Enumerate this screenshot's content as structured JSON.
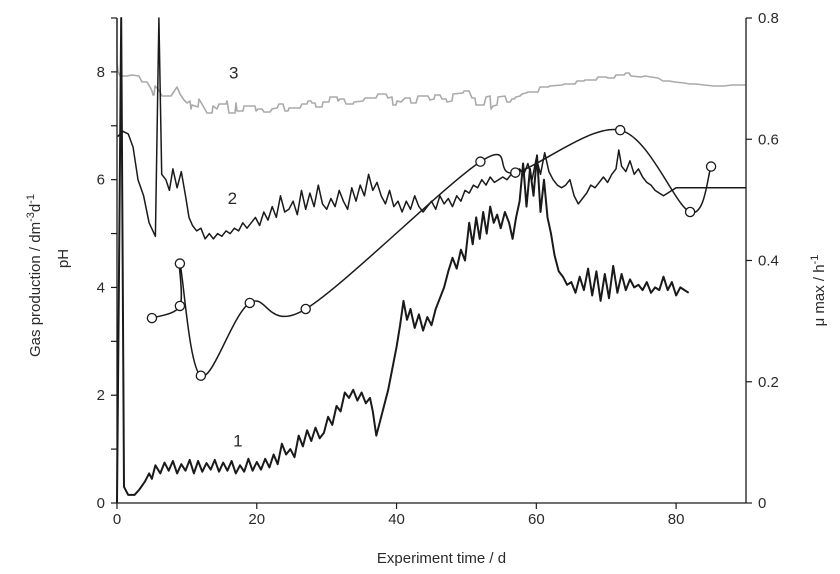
{
  "chart_data": {
    "type": "line",
    "title": "",
    "xlabel": "Experiment time / d",
    "ylabel_left": [
      "Gas production / dm",
      "-3",
      "d",
      "-1"
    ],
    "ylabel_left_second": "pH",
    "ylabel_right": [
      "μ max / h",
      "-1"
    ],
    "xlim": [
      0,
      90
    ],
    "ylim_left": [
      0,
      9
    ],
    "ylim_right": [
      0,
      0.8
    ],
    "x_ticks": [
      0,
      20,
      40,
      60,
      80
    ],
    "y_left_ticks": [
      0,
      2,
      4,
      6,
      8
    ],
    "y_right_ticks": [
      0,
      0.2,
      0.4,
      0.6,
      0.8
    ],
    "x_tick_labels": [
      "0",
      "20",
      "40",
      "60",
      "80"
    ],
    "y_left_tick_labels": [
      "0",
      "2",
      "4",
      "6",
      "8"
    ],
    "y_right_tick_labels": [
      "0",
      "0.2",
      "0.4",
      "0.6",
      "0.8"
    ],
    "grid": false,
    "legend": "none",
    "series": [
      {
        "label": "1",
        "axis": "left",
        "color": "#1a1a1a",
        "marker": "none",
        "label_pos": [
          17.3,
          1.05
        ],
        "points": [
          [
            0,
            0
          ],
          [
            0.6,
            9
          ],
          [
            1.0,
            0.3
          ],
          [
            1.6,
            0.15
          ],
          [
            2.5,
            0.15
          ],
          [
            3.2,
            0.25
          ],
          [
            4.0,
            0.4
          ],
          [
            4.6,
            0.55
          ],
          [
            5.0,
            0.45
          ],
          [
            5.5,
            0.7
          ],
          [
            6.2,
            0.55
          ],
          [
            6.8,
            0.75
          ],
          [
            7.4,
            0.6
          ],
          [
            8.0,
            0.78
          ],
          [
            8.6,
            0.55
          ],
          [
            9.2,
            0.72
          ],
          [
            9.8,
            0.6
          ],
          [
            10.4,
            0.8
          ],
          [
            11.0,
            0.55
          ],
          [
            11.6,
            0.78
          ],
          [
            12.2,
            0.58
          ],
          [
            12.8,
            0.74
          ],
          [
            13.4,
            0.62
          ],
          [
            14.0,
            0.8
          ],
          [
            14.6,
            0.58
          ],
          [
            15.2,
            0.75
          ],
          [
            15.8,
            0.6
          ],
          [
            16.4,
            0.78
          ],
          [
            17.0,
            0.55
          ],
          [
            17.6,
            0.7
          ],
          [
            18.2,
            0.58
          ],
          [
            18.8,
            0.82
          ],
          [
            19.4,
            0.6
          ],
          [
            20.0,
            0.76
          ],
          [
            20.6,
            0.62
          ],
          [
            21.2,
            0.82
          ],
          [
            21.8,
            0.66
          ],
          [
            22.4,
            0.9
          ],
          [
            23.0,
            0.72
          ],
          [
            23.6,
            1.1
          ],
          [
            24.2,
            0.9
          ],
          [
            24.8,
            1.0
          ],
          [
            25.4,
            0.85
          ],
          [
            26.0,
            1.25
          ],
          [
            26.6,
            1.05
          ],
          [
            27.2,
            1.35
          ],
          [
            27.8,
            1.15
          ],
          [
            28.4,
            1.4
          ],
          [
            29.0,
            1.2
          ],
          [
            29.6,
            1.3
          ],
          [
            30.2,
            1.6
          ],
          [
            30.8,
            1.45
          ],
          [
            31.4,
            1.8
          ],
          [
            32.0,
            1.7
          ],
          [
            32.6,
            2.05
          ],
          [
            33.2,
            1.95
          ],
          [
            33.8,
            2.1
          ],
          [
            34.4,
            1.9
          ],
          [
            35.0,
            2.05
          ],
          [
            35.6,
            1.85
          ],
          [
            36.2,
            1.95
          ],
          [
            36.6,
            1.7
          ],
          [
            37.1,
            1.25
          ],
          [
            37.6,
            1.5
          ],
          [
            38.2,
            1.8
          ],
          [
            38.8,
            2.1
          ],
          [
            39.4,
            2.5
          ],
          [
            40.0,
            2.9
          ],
          [
            40.5,
            3.3
          ],
          [
            41.0,
            3.75
          ],
          [
            41.5,
            3.4
          ],
          [
            42.0,
            3.6
          ],
          [
            42.6,
            3.25
          ],
          [
            43.2,
            3.5
          ],
          [
            43.8,
            3.2
          ],
          [
            44.4,
            3.45
          ],
          [
            45.0,
            3.3
          ],
          [
            45.6,
            3.6
          ],
          [
            46.2,
            3.8
          ],
          [
            46.8,
            4.0
          ],
          [
            47.4,
            4.3
          ],
          [
            48.0,
            4.55
          ],
          [
            48.6,
            4.35
          ],
          [
            49.2,
            4.7
          ],
          [
            49.8,
            4.5
          ],
          [
            50.4,
            5.2
          ],
          [
            50.9,
            4.8
          ],
          [
            51.4,
            5.3
          ],
          [
            51.9,
            4.9
          ],
          [
            52.4,
            5.4
          ],
          [
            52.9,
            5.0
          ],
          [
            53.4,
            5.5
          ],
          [
            53.9,
            5.2
          ],
          [
            54.4,
            5.35
          ],
          [
            54.9,
            5.1
          ],
          [
            55.5,
            5.4
          ],
          [
            56.1,
            5.2
          ],
          [
            56.6,
            4.9
          ],
          [
            57.1,
            5.3
          ],
          [
            57.6,
            5.6
          ],
          [
            58.1,
            6.3
          ],
          [
            58.6,
            5.5
          ],
          [
            59.1,
            6.2
          ],
          [
            59.6,
            5.7
          ],
          [
            60.1,
            6.45
          ],
          [
            60.6,
            5.4
          ],
          [
            61.1,
            6.0
          ],
          [
            61.6,
            5.3
          ],
          [
            62.1,
            5.0
          ],
          [
            62.6,
            4.6
          ],
          [
            63.2,
            4.3
          ],
          [
            63.8,
            4.2
          ],
          [
            64.4,
            4.05
          ],
          [
            65.0,
            4.1
          ],
          [
            65.6,
            3.9
          ],
          [
            66.2,
            4.2
          ],
          [
            66.8,
            3.95
          ],
          [
            67.4,
            4.35
          ],
          [
            68.0,
            3.85
          ],
          [
            68.6,
            4.3
          ],
          [
            69.2,
            3.75
          ],
          [
            69.8,
            4.25
          ],
          [
            70.4,
            3.8
          ],
          [
            71.0,
            4.4
          ],
          [
            71.6,
            3.9
          ],
          [
            72.2,
            4.25
          ],
          [
            72.8,
            3.95
          ],
          [
            73.4,
            4.15
          ],
          [
            74.0,
            4.0
          ],
          [
            74.6,
            4.05
          ],
          [
            75.2,
            3.95
          ],
          [
            75.8,
            4.1
          ],
          [
            76.4,
            3.9
          ],
          [
            77.0,
            4.0
          ],
          [
            77.6,
            3.95
          ],
          [
            78.2,
            4.2
          ],
          [
            78.8,
            3.95
          ],
          [
            79.4,
            4.1
          ],
          [
            80.0,
            3.85
          ],
          [
            80.6,
            4.0
          ],
          [
            81.2,
            3.95
          ],
          [
            81.8,
            3.9
          ]
        ]
      },
      {
        "label": "2",
        "axis": "left",
        "color": "#1a1a1a",
        "marker": "none",
        "label_pos": [
          16.5,
          5.55
        ],
        "points": [
          [
            0.1,
            6.8
          ],
          [
            0.8,
            6.9
          ],
          [
            1.6,
            6.85
          ],
          [
            2.3,
            6.6
          ],
          [
            3.0,
            6.0
          ],
          [
            3.8,
            5.7
          ],
          [
            4.6,
            5.2
          ],
          [
            5.5,
            4.95
          ],
          [
            6.0,
            9.0
          ],
          [
            6.4,
            6.1
          ],
          [
            7.0,
            6.0
          ],
          [
            7.5,
            5.8
          ],
          [
            8.0,
            6.2
          ],
          [
            8.6,
            5.85
          ],
          [
            9.2,
            6.15
          ],
          [
            9.8,
            5.7
          ],
          [
            10.3,
            5.3
          ],
          [
            10.8,
            5.15
          ],
          [
            11.4,
            5.05
          ],
          [
            12.0,
            5.1
          ],
          [
            12.6,
            4.9
          ],
          [
            13.2,
            5.0
          ],
          [
            13.8,
            4.9
          ],
          [
            14.4,
            5.0
          ],
          [
            15.0,
            4.95
          ],
          [
            15.6,
            5.05
          ],
          [
            16.2,
            5.0
          ],
          [
            16.8,
            5.1
          ],
          [
            17.4,
            5.05
          ],
          [
            18.0,
            5.2
          ],
          [
            18.6,
            5.1
          ],
          [
            19.2,
            5.2
          ],
          [
            19.8,
            5.3
          ],
          [
            20.4,
            5.15
          ],
          [
            21.0,
            5.4
          ],
          [
            21.6,
            5.25
          ],
          [
            22.2,
            5.5
          ],
          [
            22.8,
            5.3
          ],
          [
            23.4,
            5.7
          ],
          [
            24.0,
            5.4
          ],
          [
            24.6,
            5.45
          ],
          [
            25.2,
            5.6
          ],
          [
            25.8,
            5.35
          ],
          [
            26.4,
            5.8
          ],
          [
            27.0,
            5.45
          ],
          [
            27.6,
            5.75
          ],
          [
            28.2,
            5.5
          ],
          [
            28.8,
            5.9
          ],
          [
            29.4,
            5.55
          ],
          [
            30.0,
            5.45
          ],
          [
            30.6,
            5.65
          ],
          [
            31.2,
            5.5
          ],
          [
            31.8,
            5.8
          ],
          [
            32.4,
            5.6
          ],
          [
            33.0,
            5.45
          ],
          [
            33.6,
            5.85
          ],
          [
            34.2,
            5.6
          ],
          [
            34.8,
            5.9
          ],
          [
            35.4,
            5.7
          ],
          [
            36.0,
            6.1
          ],
          [
            36.6,
            5.8
          ],
          [
            37.2,
            5.95
          ],
          [
            37.8,
            5.7
          ],
          [
            38.4,
            5.55
          ],
          [
            39.0,
            5.8
          ],
          [
            39.6,
            5.5
          ],
          [
            40.2,
            5.6
          ],
          [
            40.8,
            5.4
          ],
          [
            41.4,
            5.6
          ],
          [
            42.0,
            5.45
          ],
          [
            42.6,
            5.7
          ],
          [
            43.2,
            5.5
          ],
          [
            43.8,
            5.4
          ],
          [
            44.4,
            5.5
          ],
          [
            45.0,
            5.6
          ],
          [
            45.6,
            5.45
          ],
          [
            46.2,
            5.7
          ],
          [
            46.8,
            5.55
          ],
          [
            47.4,
            5.65
          ],
          [
            48.0,
            5.5
          ],
          [
            48.6,
            5.7
          ],
          [
            49.2,
            5.6
          ],
          [
            49.8,
            5.8
          ],
          [
            50.4,
            5.75
          ],
          [
            51.0,
            5.9
          ],
          [
            51.6,
            5.85
          ],
          [
            52.2,
            6.0
          ],
          [
            52.8,
            5.9
          ],
          [
            53.4,
            6.05
          ],
          [
            54.0,
            5.95
          ],
          [
            54.6,
            6.0
          ],
          [
            55.2,
            6.05
          ],
          [
            55.8,
            6.0
          ],
          [
            56.4,
            6.1
          ],
          [
            57.0,
            6.05
          ],
          [
            57.6,
            6.2
          ],
          [
            58.2,
            6.1
          ],
          [
            58.8,
            6.3
          ],
          [
            59.4,
            6.0
          ],
          [
            60.0,
            6.4
          ],
          [
            60.6,
            6.1
          ],
          [
            61.2,
            6.5
          ],
          [
            61.8,
            6.15
          ],
          [
            62.4,
            6.0
          ],
          [
            63.0,
            5.9
          ],
          [
            63.6,
            5.85
          ],
          [
            64.2,
            5.9
          ],
          [
            64.8,
            6.0
          ],
          [
            65.4,
            5.7
          ],
          [
            66.0,
            5.55
          ],
          [
            66.6,
            5.65
          ],
          [
            67.2,
            5.75
          ],
          [
            67.8,
            5.9
          ],
          [
            68.4,
            5.85
          ],
          [
            69.0,
            5.95
          ],
          [
            69.6,
            6.05
          ],
          [
            70.2,
            5.95
          ],
          [
            70.8,
            6.1
          ],
          [
            71.4,
            6.2
          ],
          [
            71.8,
            6.55
          ],
          [
            72.2,
            6.25
          ],
          [
            72.8,
            6.15
          ],
          [
            73.4,
            6.35
          ],
          [
            74.0,
            6.1
          ],
          [
            74.6,
            6.2
          ],
          [
            75.2,
            6.05
          ],
          [
            75.8,
            5.95
          ],
          [
            76.4,
            5.9
          ],
          [
            77.0,
            5.8
          ],
          [
            77.6,
            5.75
          ],
          [
            78.2,
            5.7
          ],
          [
            78.8,
            5.75
          ],
          [
            79.4,
            5.8
          ],
          [
            80.0,
            5.85
          ],
          [
            80.6,
            5.85
          ],
          [
            90.0,
            5.85
          ]
        ]
      },
      {
        "label": "3",
        "axis": "left",
        "color": "#aaaaaa",
        "marker": "none",
        "label_pos": [
          16.7,
          7.88
        ]
      },
      {
        "label": "",
        "axis": "right",
        "color": "#1a1a1a",
        "marker": "circle",
        "points": [
          [
            5,
            0.305
          ],
          [
            9,
            0.325
          ],
          [
            9,
            0.395
          ],
          [
            12,
            0.21
          ],
          [
            19,
            0.33
          ],
          [
            27,
            0.32
          ],
          [
            52,
            0.563
          ],
          [
            57,
            0.545
          ],
          [
            72,
            0.615
          ],
          [
            82,
            0.48
          ],
          [
            85,
            0.555
          ]
        ]
      }
    ]
  }
}
